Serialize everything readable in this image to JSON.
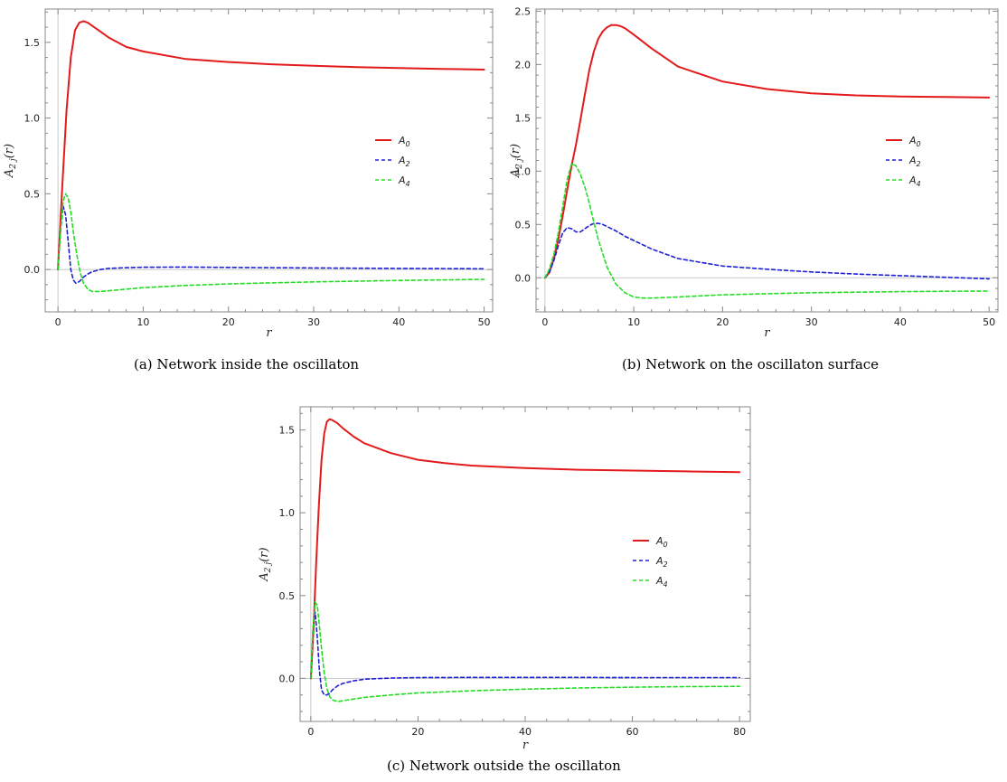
{
  "colors": {
    "A0": "#e31a1c",
    "A2": "#1f1fd6",
    "A4": "#22dd22",
    "frame": "#888888",
    "zeroline": "#c8c8c8"
  },
  "chart_data": [
    {
      "type": "line",
      "caption": "(a)  Network inside the oscillaton",
      "xlabel": "r",
      "ylabel_base": "A",
      "ylabel_sub": "2 j",
      "ylabel_tail": "(r)",
      "xlim": [
        -1.5,
        51
      ],
      "ylim": [
        -0.28,
        1.72
      ],
      "xticks": [
        0,
        10,
        20,
        30,
        40,
        50
      ],
      "yticks": [
        0.0,
        0.5,
        1.0,
        1.5
      ],
      "xtick_labels": [
        "0",
        "10",
        "20",
        "30",
        "40",
        "50"
      ],
      "ytick_labels": [
        "0.0",
        "0.5",
        "1.0",
        "1.5"
      ],
      "legend_position": "center-right",
      "legend": [
        {
          "base": "A",
          "sub": "0"
        },
        {
          "base": "A",
          "sub": "2"
        },
        {
          "base": "A",
          "sub": "4"
        }
      ],
      "series": [
        {
          "name": "A0",
          "style": "solid",
          "x": [
            0,
            0.5,
            1,
            1.5,
            2,
            2.5,
            3,
            3.5,
            4,
            5,
            6,
            8,
            10,
            15,
            20,
            25,
            30,
            35,
            40,
            45,
            50
          ],
          "y": [
            0.0,
            0.55,
            1.05,
            1.4,
            1.58,
            1.63,
            1.64,
            1.63,
            1.61,
            1.57,
            1.53,
            1.47,
            1.44,
            1.39,
            1.37,
            1.355,
            1.345,
            1.337,
            1.33,
            1.325,
            1.32
          ]
        },
        {
          "name": "A2",
          "style": "dashed",
          "x": [
            0,
            0.3,
            0.6,
            0.9,
            1.2,
            1.5,
            1.8,
            2.1,
            2.5,
            3,
            3.5,
            4,
            5,
            6,
            8,
            10,
            15,
            20,
            30,
            40,
            50
          ],
          "y": [
            0.0,
            0.25,
            0.42,
            0.36,
            0.18,
            0.0,
            -0.07,
            -0.09,
            -0.08,
            -0.05,
            -0.03,
            -0.015,
            0.0,
            0.008,
            0.012,
            0.015,
            0.016,
            0.014,
            0.01,
            0.007,
            0.005
          ]
        },
        {
          "name": "A4",
          "style": "dashed",
          "x": [
            0,
            0.3,
            0.6,
            0.9,
            1.2,
            1.5,
            1.8,
            2.2,
            2.6,
            3,
            3.5,
            4,
            5,
            6,
            8,
            10,
            15,
            20,
            30,
            40,
            50
          ],
          "y": [
            0.0,
            0.25,
            0.45,
            0.5,
            0.47,
            0.38,
            0.25,
            0.1,
            -0.02,
            -0.09,
            -0.13,
            -0.145,
            -0.145,
            -0.14,
            -0.13,
            -0.12,
            -0.105,
            -0.095,
            -0.082,
            -0.072,
            -0.065
          ]
        }
      ]
    },
    {
      "type": "line",
      "caption": "(b)  Network on the oscillaton surface",
      "xlabel": "r",
      "ylabel_base": "A",
      "ylabel_sub": "2 j",
      "ylabel_tail": "(r)",
      "xlim": [
        -1,
        51
      ],
      "ylim": [
        -0.32,
        2.52
      ],
      "xticks": [
        0,
        10,
        20,
        30,
        40,
        50
      ],
      "yticks": [
        0.0,
        0.5,
        1.0,
        1.5,
        2.0,
        2.5
      ],
      "xtick_labels": [
        "0",
        "10",
        "20",
        "30",
        "40",
        "50"
      ],
      "ytick_labels": [
        "0.0",
        "0.5",
        "1.0",
        "1.5",
        "2.0",
        "2.5"
      ],
      "legend_position": "center-right",
      "legend": [
        {
          "base": "A",
          "sub": "0"
        },
        {
          "base": "A",
          "sub": "2"
        },
        {
          "base": "A",
          "sub": "4"
        }
      ],
      "series": [
        {
          "name": "A0",
          "style": "solid",
          "x": [
            0,
            0.5,
            1,
            1.5,
            2,
            2.5,
            3,
            3.5,
            4,
            4.5,
            5,
            5.5,
            6,
            6.5,
            7,
            7.5,
            8,
            8.5,
            9,
            10,
            12,
            15,
            20,
            25,
            30,
            35,
            40,
            45,
            50
          ],
          "y": [
            0.0,
            0.05,
            0.18,
            0.36,
            0.58,
            0.82,
            1.05,
            1.25,
            1.48,
            1.72,
            1.95,
            2.12,
            2.24,
            2.31,
            2.35,
            2.37,
            2.37,
            2.36,
            2.34,
            2.28,
            2.15,
            1.98,
            1.84,
            1.77,
            1.73,
            1.71,
            1.7,
            1.695,
            1.69
          ]
        },
        {
          "name": "A2",
          "style": "dashed",
          "x": [
            0,
            0.5,
            1,
            1.5,
            2,
            2.5,
            3,
            3.5,
            4,
            4.5,
            5,
            5.5,
            6,
            6.5,
            7,
            8,
            9,
            10,
            12,
            15,
            20,
            25,
            30,
            35,
            40,
            45,
            50
          ],
          "y": [
            0.0,
            0.05,
            0.16,
            0.3,
            0.42,
            0.47,
            0.46,
            0.43,
            0.43,
            0.46,
            0.49,
            0.51,
            0.51,
            0.5,
            0.48,
            0.44,
            0.39,
            0.35,
            0.27,
            0.18,
            0.11,
            0.08,
            0.055,
            0.035,
            0.02,
            0.005,
            -0.01
          ]
        },
        {
          "name": "A4",
          "style": "dashed",
          "x": [
            0,
            0.5,
            1,
            1.5,
            2,
            2.5,
            3,
            3.5,
            4,
            4.5,
            5,
            5.5,
            6,
            7,
            8,
            9,
            10,
            11,
            12,
            15,
            20,
            25,
            30,
            35,
            40,
            45,
            50
          ],
          "y": [
            0.0,
            0.08,
            0.22,
            0.42,
            0.67,
            0.92,
            1.07,
            1.05,
            0.97,
            0.85,
            0.7,
            0.52,
            0.36,
            0.1,
            -0.06,
            -0.14,
            -0.18,
            -0.19,
            -0.19,
            -0.18,
            -0.16,
            -0.15,
            -0.14,
            -0.135,
            -0.13,
            -0.127,
            -0.125
          ]
        }
      ]
    },
    {
      "type": "line",
      "caption": "(c)  Network outside the oscillaton",
      "xlabel": "r",
      "ylabel_base": "A",
      "ylabel_sub": "2 j",
      "ylabel_tail": "(r)",
      "xlim": [
        -2,
        82
      ],
      "ylim": [
        -0.26,
        1.64
      ],
      "xticks": [
        0,
        20,
        40,
        60,
        80
      ],
      "yticks": [
        0.0,
        0.5,
        1.0,
        1.5
      ],
      "xtick_labels": [
        "0",
        "20",
        "40",
        "60",
        "80"
      ],
      "ytick_labels": [
        "0.0",
        "0.5",
        "1.0",
        "1.5"
      ],
      "legend_position": "center-right",
      "legend": [
        {
          "base": "A",
          "sub": "0"
        },
        {
          "base": "A",
          "sub": "2"
        },
        {
          "base": "A",
          "sub": "4"
        }
      ],
      "series": [
        {
          "name": "A0",
          "style": "solid",
          "x": [
            0,
            0.5,
            1,
            1.5,
            2,
            2.5,
            3,
            3.5,
            4,
            5,
            6,
            8,
            10,
            15,
            20,
            25,
            30,
            40,
            50,
            60,
            70,
            80
          ],
          "y": [
            0.0,
            0.3,
            0.7,
            1.05,
            1.32,
            1.48,
            1.55,
            1.565,
            1.56,
            1.54,
            1.51,
            1.46,
            1.42,
            1.36,
            1.32,
            1.3,
            1.285,
            1.27,
            1.26,
            1.255,
            1.25,
            1.245
          ]
        },
        {
          "name": "A2",
          "style": "dashed",
          "x": [
            0,
            0.4,
            0.8,
            1.2,
            1.6,
            2,
            2.5,
            3,
            3.5,
            4,
            5,
            6,
            8,
            10,
            15,
            20,
            30,
            40,
            50,
            60,
            70,
            80
          ],
          "y": [
            0.0,
            0.3,
            0.4,
            0.25,
            0.05,
            -0.07,
            -0.1,
            -0.1,
            -0.09,
            -0.07,
            -0.045,
            -0.03,
            -0.015,
            -0.005,
            0.002,
            0.005,
            0.006,
            0.006,
            0.006,
            0.005,
            0.005,
            0.005
          ]
        },
        {
          "name": "A4",
          "style": "dashed",
          "x": [
            0,
            0.4,
            0.8,
            1.2,
            1.6,
            2,
            2.5,
            3,
            3.5,
            4,
            5,
            6,
            8,
            10,
            15,
            20,
            30,
            40,
            50,
            60,
            70,
            80
          ],
          "y": [
            0.0,
            0.3,
            0.46,
            0.44,
            0.32,
            0.18,
            0.03,
            -0.06,
            -0.11,
            -0.13,
            -0.14,
            -0.135,
            -0.125,
            -0.115,
            -0.1,
            -0.088,
            -0.075,
            -0.065,
            -0.058,
            -0.053,
            -0.05,
            -0.048
          ]
        }
      ]
    }
  ]
}
